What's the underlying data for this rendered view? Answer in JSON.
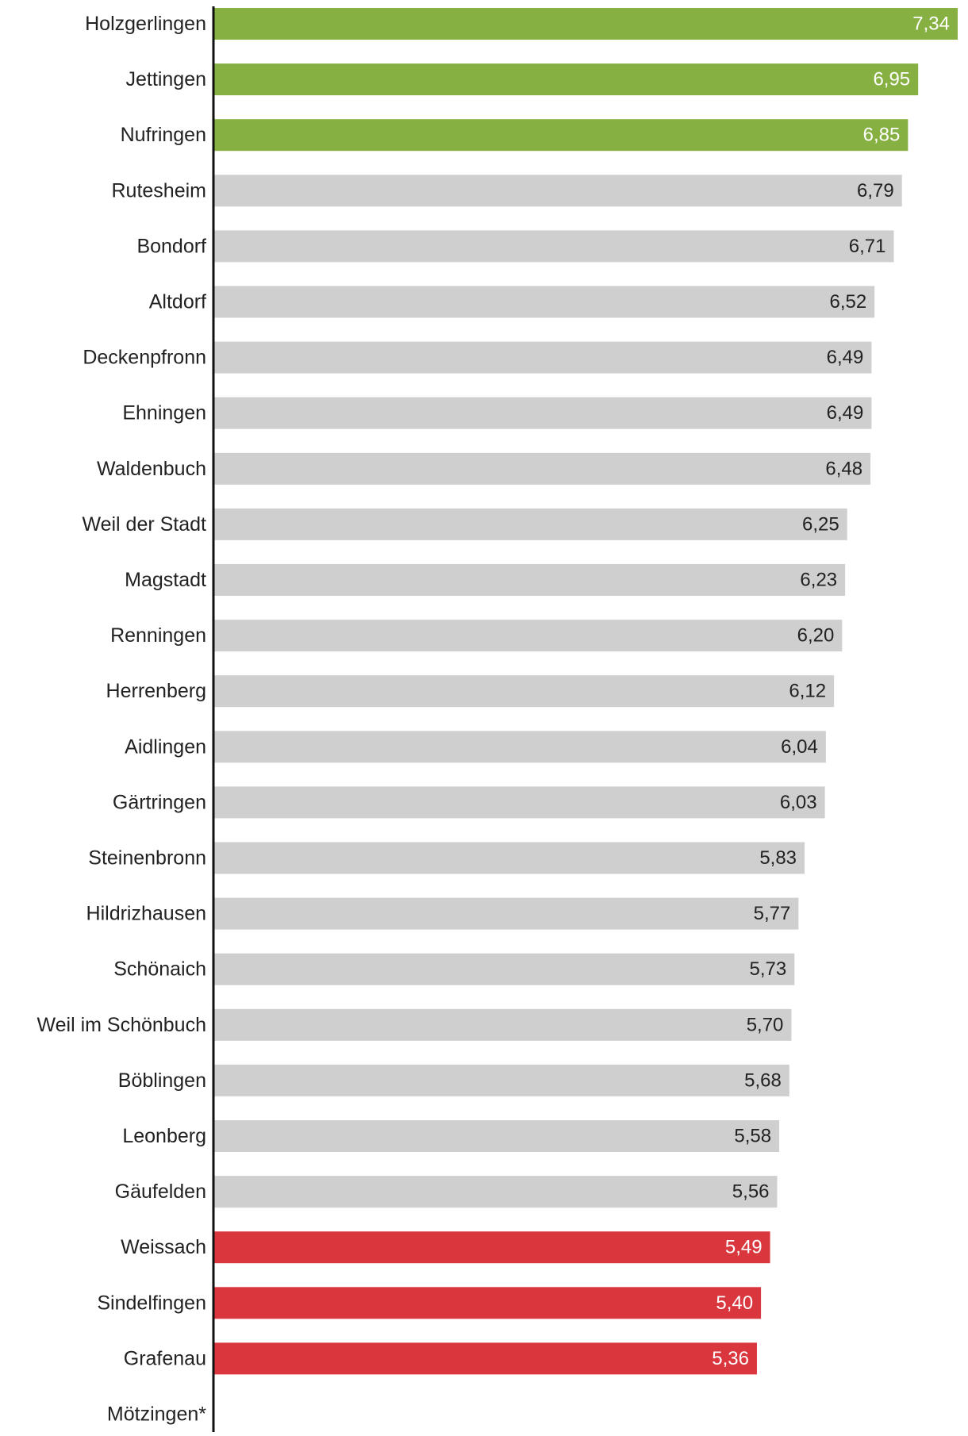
{
  "chart_data": {
    "type": "bar",
    "orientation": "horizontal",
    "categories": [
      "Holzgerlingen",
      "Jettingen",
      "Nufringen",
      "Rutesheim",
      "Bondorf",
      "Altdorf",
      "Deckenpfronn",
      "Ehningen",
      "Waldenbuch",
      "Weil der Stadt",
      "Magstadt",
      "Renningen",
      "Herrenberg",
      "Aidlingen",
      "Gärtringen",
      "Steinenbronn",
      "Hildrizhausen",
      "Schönaich",
      "Weil im Schönbuch",
      "Böblingen",
      "Leonberg",
      "Gäufelden",
      "Weissach",
      "Sindelfingen",
      "Grafenau",
      "Mötzingen*"
    ],
    "values": [
      7.34,
      6.95,
      6.85,
      6.79,
      6.71,
      6.52,
      6.49,
      6.49,
      6.48,
      6.25,
      6.23,
      6.2,
      6.12,
      6.04,
      6.03,
      5.83,
      5.77,
      5.73,
      5.7,
      5.68,
      5.58,
      5.56,
      5.49,
      5.4,
      5.36,
      null
    ],
    "value_labels": [
      "7,34",
      "6,95",
      "6,85",
      "6,79",
      "6,71",
      "6,52",
      "6,49",
      "6,49",
      "6,48",
      "6,25",
      "6,23",
      "6,20",
      "6,12",
      "6,04",
      "6,03",
      "5,83",
      "5,77",
      "5,73",
      "5,70",
      "5,68",
      "5,58",
      "5,56",
      "5,49",
      "5,40",
      "5,36",
      ""
    ],
    "groups": [
      "top",
      "top",
      "top",
      "mid",
      "mid",
      "mid",
      "mid",
      "mid",
      "mid",
      "mid",
      "mid",
      "mid",
      "mid",
      "mid",
      "mid",
      "mid",
      "mid",
      "mid",
      "mid",
      "mid",
      "mid",
      "mid",
      "bottom",
      "bottom",
      "bottom",
      "none"
    ],
    "colors": {
      "top": "#86b142",
      "mid": "#cfcfcf",
      "bottom": "#d9363e",
      "axis": "#111111"
    },
    "label_colors": {
      "top": "#ffffff",
      "mid": "#222222",
      "bottom": "#ffffff"
    },
    "xlim": [
      0,
      7.34
    ],
    "title": "",
    "xlabel": "",
    "ylabel": "",
    "grid": false,
    "legend": "none"
  }
}
